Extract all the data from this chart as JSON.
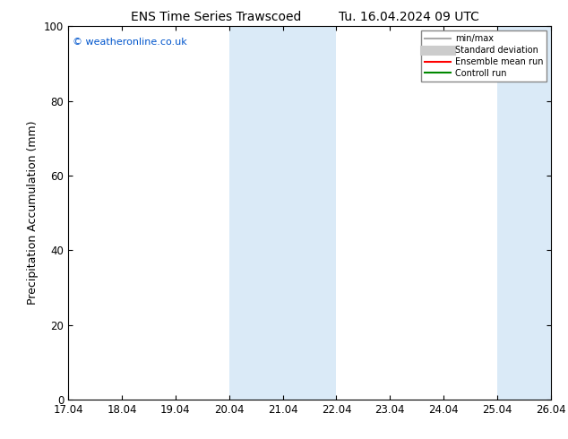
{
  "title_left": "ENS Time Series Trawscoed",
  "title_right": "Tu. 16.04.2024 09 UTC",
  "ylabel": "Precipitation Accumulation (mm)",
  "ylim": [
    0,
    100
  ],
  "xlim": [
    0,
    9
  ],
  "xtick_labels": [
    "17.04",
    "18.04",
    "19.04",
    "20.04",
    "21.04",
    "22.04",
    "23.04",
    "24.04",
    "25.04",
    "26.04"
  ],
  "xtick_positions": [
    0,
    1,
    2,
    3,
    4,
    5,
    6,
    7,
    8,
    9
  ],
  "ytick_positions": [
    0,
    20,
    40,
    60,
    80,
    100
  ],
  "ytick_labels": [
    "0",
    "20",
    "40",
    "60",
    "80",
    "100"
  ],
  "watermark": "© weatheronline.co.uk",
  "watermark_color": "#0055cc",
  "background_color": "#ffffff",
  "plot_bg_color": "#ffffff",
  "shaded_bands": [
    {
      "xmin": 3.0,
      "xmax": 5.0,
      "color": "#daeaf7"
    },
    {
      "xmin": 8.0,
      "xmax": 9.0,
      "color": "#daeaf7"
    }
  ],
  "legend_items": [
    {
      "label": "min/max",
      "color": "#aaaaaa",
      "lw": 1.5,
      "type": "line"
    },
    {
      "label": "Standard deviation",
      "color": "#cccccc",
      "lw": 8,
      "type": "line"
    },
    {
      "label": "Ensemble mean run",
      "color": "#ff0000",
      "lw": 1.5,
      "type": "line"
    },
    {
      "label": "Controll run",
      "color": "#008800",
      "lw": 1.5,
      "type": "line"
    }
  ],
  "spine_color": "#000000",
  "tick_color": "#000000",
  "title_fontsize": 10,
  "label_fontsize": 9,
  "tick_fontsize": 8.5
}
